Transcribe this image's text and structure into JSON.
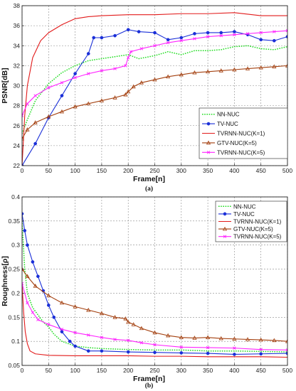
{
  "colors": {
    "NN-NUC": "#22dd22",
    "TV-NUC": "#1a2fd8",
    "TVRNN-NUC(K=1)": "#e21a1a",
    "GTV-NUC(K=5)": "#a33f0e",
    "TVRNN-NUC(K=5)": "#ff22ff"
  },
  "chart_data": [
    {
      "type": "line",
      "caption": "(a)",
      "xlabel": "Frame[n]",
      "ylabel": "PSNR[dB]",
      "xlim": [
        0,
        500
      ],
      "ylim": [
        22,
        38
      ],
      "xticks": [
        0,
        50,
        100,
        150,
        200,
        250,
        300,
        350,
        400,
        450,
        500
      ],
      "yticks": [
        22,
        24,
        26,
        28,
        30,
        32,
        34,
        36,
        38
      ],
      "grid": true,
      "legend": "bottom-right",
      "series": [
        {
          "name": "NN-NUC",
          "style": "dotted",
          "marker": "none",
          "x": [
            0,
            10,
            25,
            50,
            75,
            100,
            125,
            150,
            175,
            200,
            220,
            250,
            275,
            300,
            325,
            350,
            375,
            400,
            425,
            450,
            475,
            500
          ],
          "y": [
            25.2,
            26.6,
            28.5,
            30.2,
            31.3,
            32.0,
            32.5,
            32.7,
            32.9,
            33.1,
            32.7,
            33.0,
            33.4,
            33.1,
            33.5,
            33.5,
            33.6,
            33.9,
            34.0,
            33.7,
            33.6,
            33.9
          ]
        },
        {
          "name": "TV-NUC",
          "style": "solid",
          "marker": "filled-circle",
          "x": [
            0,
            25,
            50,
            75,
            100,
            125,
            135,
            150,
            175,
            200,
            220,
            250,
            275,
            300,
            325,
            350,
            375,
            400,
            425,
            450,
            475,
            500
          ],
          "y": [
            22.0,
            24.2,
            26.8,
            29.0,
            31.2,
            33.2,
            34.8,
            34.8,
            35.0,
            35.6,
            35.4,
            35.3,
            34.6,
            34.8,
            35.2,
            35.3,
            35.3,
            35.4,
            35.1,
            34.6,
            34.5,
            34.9
          ]
        },
        {
          "name": "TVRNN-NUC(K=1)",
          "style": "solid",
          "marker": "none",
          "x": [
            0,
            5,
            10,
            20,
            35,
            50,
            75,
            100,
            125,
            150,
            200,
            250,
            300,
            350,
            400,
            450,
            500
          ],
          "y": [
            22.0,
            27.0,
            30.0,
            32.8,
            34.5,
            35.3,
            36.1,
            36.7,
            36.9,
            37.0,
            37.1,
            37.1,
            37.2,
            37.2,
            37.3,
            37.0,
            37.0
          ]
        },
        {
          "name": "GTV-NUC(K=5)",
          "style": "solid",
          "marker": "open-triangle",
          "x": [
            0,
            10,
            25,
            50,
            75,
            100,
            125,
            150,
            175,
            195,
            200,
            210,
            225,
            250,
            275,
            300,
            325,
            350,
            375,
            400,
            425,
            450,
            475,
            500
          ],
          "y": [
            24.7,
            25.6,
            26.3,
            26.9,
            27.4,
            27.9,
            28.2,
            28.5,
            28.8,
            29.1,
            29.4,
            29.9,
            30.3,
            30.6,
            30.9,
            31.1,
            31.3,
            31.4,
            31.5,
            31.6,
            31.7,
            31.8,
            31.9,
            32.0
          ]
        },
        {
          "name": "TVRNN-NUC(K=5)",
          "style": "solid",
          "marker": "x",
          "x": [
            0,
            10,
            25,
            50,
            75,
            100,
            125,
            150,
            175,
            195,
            200,
            205,
            225,
            250,
            275,
            300,
            325,
            350,
            375,
            400,
            425,
            450,
            475,
            500
          ],
          "y": [
            27.0,
            28.2,
            29.0,
            29.8,
            30.3,
            30.8,
            31.2,
            31.5,
            31.7,
            32.0,
            32.8,
            33.4,
            33.7,
            34.0,
            34.3,
            34.5,
            34.7,
            34.9,
            35.0,
            35.1,
            35.2,
            35.3,
            35.4,
            35.5
          ]
        }
      ]
    },
    {
      "type": "line",
      "caption": "(b)",
      "xlabel": "Frame[n]",
      "ylabel": "Roughness[ρ]",
      "xlim": [
        0,
        500
      ],
      "ylim": [
        0.05,
        0.4
      ],
      "xticks": [
        0,
        50,
        100,
        150,
        200,
        250,
        300,
        350,
        400,
        450,
        500
      ],
      "yticks": [
        0.05,
        0.1,
        0.15,
        0.2,
        0.25,
        0.3,
        0.35,
        0.4
      ],
      "grid": true,
      "legend": "top-right",
      "series": [
        {
          "name": "NN-NUC",
          "style": "dotted",
          "marker": "none",
          "x": [
            0,
            5,
            10,
            20,
            30,
            40,
            50,
            60,
            75,
            100,
            125,
            150,
            200,
            250,
            300,
            350,
            400,
            450,
            500
          ],
          "y": [
            0.35,
            0.25,
            0.2,
            0.17,
            0.155,
            0.14,
            0.13,
            0.115,
            0.1,
            0.09,
            0.087,
            0.085,
            0.083,
            0.082,
            0.082,
            0.08,
            0.08,
            0.079,
            0.078
          ]
        },
        {
          "name": "TV-NUC",
          "style": "solid",
          "marker": "filled-circle",
          "x": [
            0,
            5,
            10,
            20,
            30,
            40,
            50,
            60,
            75,
            90,
            100,
            125,
            150,
            200,
            250,
            300,
            350,
            400,
            450,
            500
          ],
          "y": [
            0.365,
            0.33,
            0.3,
            0.265,
            0.235,
            0.205,
            0.175,
            0.15,
            0.12,
            0.1,
            0.09,
            0.08,
            0.08,
            0.078,
            0.077,
            0.076,
            0.075,
            0.073,
            0.074,
            0.075
          ]
        },
        {
          "name": "TVRNN-NUC(K=1)",
          "style": "solid",
          "marker": "none",
          "x": [
            0,
            3,
            6,
            10,
            15,
            25,
            50,
            100,
            150,
            200,
            250,
            300,
            350,
            400,
            450,
            500
          ],
          "y": [
            0.22,
            0.16,
            0.12,
            0.095,
            0.08,
            0.074,
            0.071,
            0.07,
            0.07,
            0.07,
            0.069,
            0.069,
            0.068,
            0.068,
            0.068,
            0.067
          ]
        },
        {
          "name": "GTV-NUC(K=5)",
          "style": "solid",
          "marker": "open-triangle",
          "x": [
            0,
            10,
            25,
            50,
            75,
            100,
            125,
            150,
            175,
            195,
            200,
            210,
            225,
            250,
            275,
            300,
            325,
            350,
            375,
            400,
            425,
            450,
            475,
            500
          ],
          "y": [
            0.25,
            0.235,
            0.215,
            0.195,
            0.18,
            0.172,
            0.165,
            0.158,
            0.15,
            0.147,
            0.14,
            0.135,
            0.127,
            0.118,
            0.112,
            0.108,
            0.107,
            0.108,
            0.106,
            0.105,
            0.104,
            0.103,
            0.102,
            0.1
          ]
        },
        {
          "name": "TVRNN-NUC(K=5)",
          "style": "solid",
          "marker": "x",
          "x": [
            0,
            10,
            20,
            30,
            50,
            75,
            100,
            125,
            150,
            175,
            200,
            225,
            250,
            300,
            350,
            400,
            450,
            500
          ],
          "y": [
            0.22,
            0.18,
            0.16,
            0.145,
            0.135,
            0.125,
            0.118,
            0.113,
            0.108,
            0.104,
            0.102,
            0.097,
            0.093,
            0.088,
            0.087,
            0.086,
            0.083,
            0.082
          ]
        }
      ]
    }
  ]
}
